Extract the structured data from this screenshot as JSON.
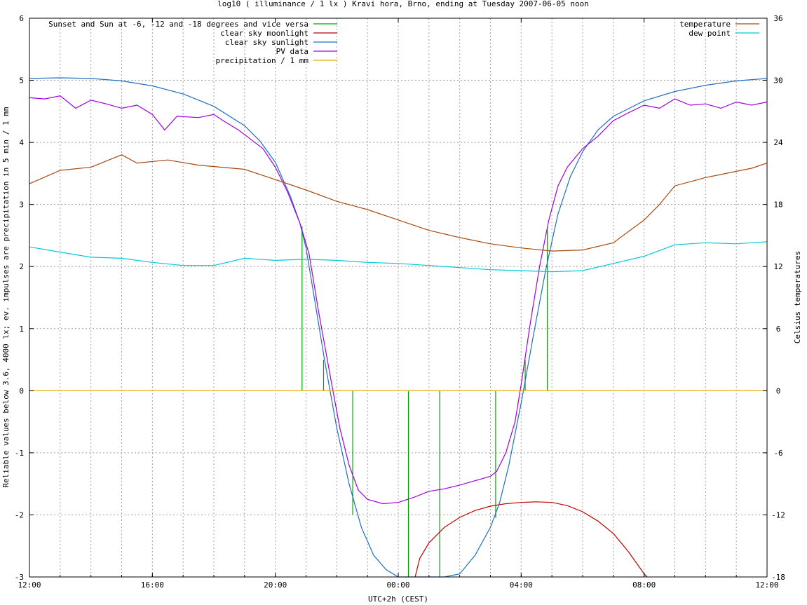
{
  "chart_data": {
    "type": "line",
    "title": "log10 ( illuminance / 1 lx ) Kravi hora, Brno, ending at Tuesday 2007-06-05 noon",
    "xlabel": "UTC+2h (CEST)",
    "ylabel": "Reliable values below 3.6, 4000 lx; ev. impulses are precipitation in 5 min / 1 mm",
    "y2label": "Celsius temperatures",
    "xlim": [
      12,
      36
    ],
    "ylim": [
      -3,
      6
    ],
    "y2lim": [
      -18,
      36
    ],
    "x_ticks": [
      {
        "x": 12,
        "label": "12:00"
      },
      {
        "x": 16,
        "label": "16:00"
      },
      {
        "x": 20,
        "label": "20:00"
      },
      {
        "x": 24,
        "label": "00:00"
      },
      {
        "x": 28,
        "label": "04:00"
      },
      {
        "x": 32,
        "label": "08:00"
      },
      {
        "x": 36,
        "label": "12:00"
      }
    ],
    "y_ticks": [
      "-3",
      "-2",
      "-1",
      "0",
      "1",
      "2",
      "3",
      "4",
      "5",
      "6"
    ],
    "y2_ticks": [
      "-18",
      "-12",
      "-6",
      "0",
      "6",
      "12",
      "18",
      "24",
      "30",
      "36"
    ],
    "grid": true,
    "legend_left": "top-left",
    "legend_right": "top-right",
    "series": [
      {
        "name": "Sunset and Sun at -6, -12 and -18 degrees and vice versa",
        "axis": "left",
        "color": "#00a000",
        "kind": "impulses",
        "impulses": [
          {
            "x": 20.87,
            "y": 2.65
          },
          {
            "x": 21.57,
            "y": 0.5
          },
          {
            "x": 22.52,
            "y": -2.0
          },
          {
            "x": 24.33,
            "y": -3.0
          },
          {
            "x": 25.35,
            "y": -3.0
          },
          {
            "x": 27.17,
            "y": -2.05
          },
          {
            "x": 28.13,
            "y": 0.5
          },
          {
            "x": 28.85,
            "y": 2.6
          }
        ]
      },
      {
        "name": "clear sky moonlight",
        "axis": "left",
        "color": "#c00000",
        "points": [
          [
            24.55,
            -3.0
          ],
          [
            24.7,
            -2.7
          ],
          [
            25.0,
            -2.45
          ],
          [
            25.5,
            -2.2
          ],
          [
            26.0,
            -2.04
          ],
          [
            26.5,
            -1.93
          ],
          [
            27.0,
            -1.86
          ],
          [
            27.5,
            -1.82
          ],
          [
            28.0,
            -1.8
          ],
          [
            28.5,
            -1.79
          ],
          [
            29.0,
            -1.8
          ],
          [
            29.5,
            -1.85
          ],
          [
            30.0,
            -1.95
          ],
          [
            30.5,
            -2.1
          ],
          [
            31.0,
            -2.3
          ],
          [
            31.5,
            -2.6
          ],
          [
            32.0,
            -2.95
          ],
          [
            32.1,
            -3.0
          ]
        ]
      },
      {
        "name": "clear sky sunlight",
        "axis": "left",
        "color": "#1f6fc0",
        "points": [
          [
            12.0,
            5.03
          ],
          [
            13.0,
            5.04
          ],
          [
            14.0,
            5.03
          ],
          [
            15.0,
            4.99
          ],
          [
            16.0,
            4.91
          ],
          [
            17.0,
            4.78
          ],
          [
            18.0,
            4.58
          ],
          [
            19.0,
            4.27
          ],
          [
            19.5,
            4.02
          ],
          [
            20.0,
            3.68
          ],
          [
            20.5,
            3.12
          ],
          [
            20.8,
            2.7
          ],
          [
            21.0,
            2.3
          ],
          [
            21.3,
            1.4
          ],
          [
            21.6,
            0.5
          ],
          [
            22.0,
            -0.6
          ],
          [
            22.4,
            -1.5
          ],
          [
            22.8,
            -2.2
          ],
          [
            23.2,
            -2.65
          ],
          [
            23.6,
            -2.88
          ],
          [
            24.0,
            -3.0
          ],
          [
            25.5,
            -3.0
          ],
          [
            26.0,
            -2.95
          ],
          [
            26.5,
            -2.65
          ],
          [
            27.0,
            -2.2
          ],
          [
            27.3,
            -1.8
          ],
          [
            27.6,
            -1.2
          ],
          [
            28.0,
            -0.2
          ],
          [
            28.4,
            0.9
          ],
          [
            28.8,
            1.95
          ],
          [
            29.2,
            2.85
          ],
          [
            29.6,
            3.45
          ],
          [
            30.0,
            3.85
          ],
          [
            30.5,
            4.2
          ],
          [
            31.0,
            4.42
          ],
          [
            32.0,
            4.67
          ],
          [
            33.0,
            4.82
          ],
          [
            34.0,
            4.92
          ],
          [
            35.0,
            4.99
          ],
          [
            36.0,
            5.03
          ]
        ]
      },
      {
        "name": "PV data",
        "axis": "left",
        "color": "#a000e0",
        "points": [
          [
            12.0,
            4.72
          ],
          [
            12.5,
            4.7
          ],
          [
            13.0,
            4.75
          ],
          [
            13.5,
            4.55
          ],
          [
            14.0,
            4.68
          ],
          [
            14.5,
            4.62
          ],
          [
            15.0,
            4.55
          ],
          [
            15.5,
            4.6
          ],
          [
            16.0,
            4.45
          ],
          [
            16.4,
            4.2
          ],
          [
            16.8,
            4.42
          ],
          [
            17.5,
            4.4
          ],
          [
            18.0,
            4.45
          ],
          [
            18.3,
            4.35
          ],
          [
            18.8,
            4.2
          ],
          [
            19.2,
            4.05
          ],
          [
            19.6,
            3.9
          ],
          [
            20.0,
            3.6
          ],
          [
            20.4,
            3.2
          ],
          [
            20.8,
            2.7
          ],
          [
            21.1,
            2.2
          ],
          [
            21.4,
            1.3
          ],
          [
            21.8,
            0.2
          ],
          [
            22.1,
            -0.6
          ],
          [
            22.4,
            -1.2
          ],
          [
            22.7,
            -1.6
          ],
          [
            23.0,
            -1.75
          ],
          [
            23.5,
            -1.82
          ],
          [
            24.0,
            -1.8
          ],
          [
            24.5,
            -1.72
          ],
          [
            25.0,
            -1.62
          ],
          [
            25.5,
            -1.58
          ],
          [
            26.0,
            -1.52
          ],
          [
            26.5,
            -1.45
          ],
          [
            27.0,
            -1.38
          ],
          [
            27.2,
            -1.3
          ],
          [
            27.5,
            -1.0
          ],
          [
            27.8,
            -0.5
          ],
          [
            28.0,
            0.1
          ],
          [
            28.3,
            1.1
          ],
          [
            28.6,
            2.0
          ],
          [
            28.9,
            2.75
          ],
          [
            29.2,
            3.3
          ],
          [
            29.5,
            3.6
          ],
          [
            30.0,
            3.9
          ],
          [
            30.5,
            4.1
          ],
          [
            31.0,
            4.35
          ],
          [
            31.5,
            4.48
          ],
          [
            32.0,
            4.6
          ],
          [
            32.5,
            4.55
          ],
          [
            33.0,
            4.7
          ],
          [
            33.5,
            4.6
          ],
          [
            34.0,
            4.62
          ],
          [
            34.5,
            4.55
          ],
          [
            35.0,
            4.65
          ],
          [
            35.5,
            4.6
          ],
          [
            36.0,
            4.65
          ]
        ]
      },
      {
        "name": "precipitation / 1 mm",
        "axis": "left",
        "color": "#e0b000",
        "points": [
          [
            12.0,
            0.0
          ],
          [
            36.0,
            0.0
          ]
        ]
      },
      {
        "name": "temperature",
        "axis": "right",
        "color": "#a84a10",
        "points": [
          [
            12.0,
            20.0
          ],
          [
            13.0,
            21.3
          ],
          [
            14.0,
            21.6
          ],
          [
            15.0,
            22.8
          ],
          [
            15.5,
            22.0
          ],
          [
            16.5,
            22.3
          ],
          [
            17.5,
            21.8
          ],
          [
            19.0,
            21.4
          ],
          [
            20.0,
            20.4
          ],
          [
            21.0,
            19.4
          ],
          [
            22.0,
            18.3
          ],
          [
            23.0,
            17.5
          ],
          [
            24.0,
            16.5
          ],
          [
            25.0,
            15.5
          ],
          [
            26.0,
            14.8
          ],
          [
            27.0,
            14.2
          ],
          [
            28.0,
            13.8
          ],
          [
            29.0,
            13.5
          ],
          [
            30.0,
            13.6
          ],
          [
            31.0,
            14.3
          ],
          [
            32.0,
            16.5
          ],
          [
            32.5,
            18.0
          ],
          [
            33.0,
            19.8
          ],
          [
            34.0,
            20.6
          ],
          [
            35.0,
            21.2
          ],
          [
            35.5,
            21.5
          ],
          [
            36.0,
            22.0
          ]
        ]
      },
      {
        "name": "dew point",
        "axis": "right",
        "color": "#00c8d8",
        "points": [
          [
            12.0,
            13.9
          ],
          [
            13.0,
            13.4
          ],
          [
            14.0,
            12.9
          ],
          [
            15.0,
            12.8
          ],
          [
            16.0,
            12.4
          ],
          [
            17.0,
            12.1
          ],
          [
            18.0,
            12.1
          ],
          [
            19.0,
            12.8
          ],
          [
            20.0,
            12.6
          ],
          [
            21.0,
            12.7
          ],
          [
            22.0,
            12.6
          ],
          [
            23.0,
            12.4
          ],
          [
            24.0,
            12.3
          ],
          [
            25.0,
            12.1
          ],
          [
            26.0,
            11.9
          ],
          [
            27.0,
            11.7
          ],
          [
            28.0,
            11.6
          ],
          [
            29.0,
            11.5
          ],
          [
            30.0,
            11.6
          ],
          [
            31.0,
            12.3
          ],
          [
            32.0,
            13.0
          ],
          [
            33.0,
            14.1
          ],
          [
            34.0,
            14.3
          ],
          [
            35.0,
            14.2
          ],
          [
            36.0,
            14.4
          ]
        ]
      }
    ]
  }
}
